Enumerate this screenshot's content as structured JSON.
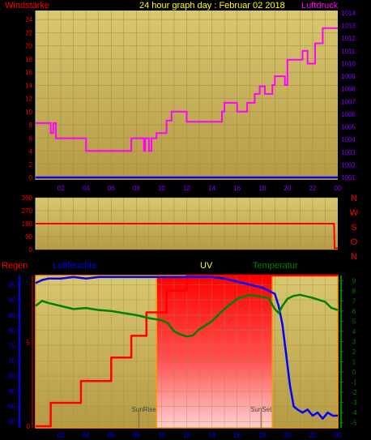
{
  "colors": {
    "background": "#000000",
    "panel": "#c9b25a",
    "panel_bottom": "#b8a049",
    "red": "#ff0000",
    "magenta": "#ff00ff",
    "blue": "#0000ff",
    "green": "#008000",
    "yellow": "#ffff00",
    "grid": "#8a7a3a",
    "axis_text_left": "#ff0000",
    "axis_text_right": "#8000ff"
  },
  "chart_data": [
    {
      "type": "line",
      "title": "24 hour graph day : Februar 02 2018",
      "left_label": "Windstärke",
      "right_label": "Luftdruck",
      "x_ticks": [
        "02",
        "04",
        "06",
        "08",
        "10",
        "12",
        "14",
        "16",
        "18",
        "20",
        "22",
        "00"
      ],
      "left_ticks": [
        "0",
        "2",
        "4",
        "6",
        "8",
        "10",
        "12",
        "14",
        "16",
        "18",
        "20",
        "22",
        "24"
      ],
      "right_ticks": [
        "1001",
        "1002",
        "1003",
        "1004",
        "1005",
        "1006",
        "1007",
        "1008",
        "1009",
        "1010",
        "1011",
        "1012",
        "1013",
        "1014"
      ],
      "ylim_left": [
        0,
        25
      ],
      "ylim_right": [
        1001,
        1014
      ],
      "xlim": [
        0,
        24
      ],
      "series": [
        {
          "name": "Luftdruck",
          "axis": "right",
          "color": "#ff00ff",
          "x": [
            0,
            1.2,
            1.2,
            1.4,
            1.4,
            1.6,
            1.6,
            4,
            4,
            7.6,
            7.6,
            8.6,
            8.6,
            8.7,
            8.7,
            9.0,
            9.0,
            9.2,
            9.2,
            9.6,
            9.6,
            10.4,
            10.4,
            10.8,
            10.8,
            12.0,
            12.0,
            14.8,
            14.8,
            15.0,
            15.0,
            16.0,
            16.0,
            16.8,
            16.8,
            17.4,
            17.4,
            17.8,
            17.8,
            18.2,
            18.2,
            18.8,
            18.8,
            19.0,
            19.0,
            19.8,
            19.8,
            20.0,
            20.0,
            21.2,
            21.2,
            21.6,
            21.6,
            22.2,
            22.2,
            22.8,
            22.8,
            24
          ],
          "values": [
            1005.3,
            1005.3,
            1004.5,
            1004.5,
            1005.3,
            1005.3,
            1004.1,
            1004.1,
            1003.1,
            1003.1,
            1004.1,
            1004.1,
            1003.1,
            1003.1,
            1004.1,
            1004.1,
            1003.1,
            1003.1,
            1004.1,
            1004.1,
            1004.5,
            1004.5,
            1005.5,
            1005.5,
            1006.2,
            1006.2,
            1005.4,
            1005.4,
            1006.2,
            1006.2,
            1006.9,
            1006.9,
            1006.2,
            1006.2,
            1006.9,
            1006.9,
            1007.6,
            1007.6,
            1008.2,
            1008.2,
            1007.6,
            1007.6,
            1008.3,
            1008.3,
            1009.0,
            1009.0,
            1008.3,
            1008.3,
            1010.3,
            1010.3,
            1011.0,
            1011.0,
            1010.0,
            1010.0,
            1011.6,
            1011.6,
            1012.8,
            1012.8
          ]
        },
        {
          "name": "Windstärke",
          "axis": "left",
          "color": "#0000ff",
          "x": [
            0,
            24
          ],
          "values": [
            0,
            0
          ]
        }
      ]
    },
    {
      "type": "line",
      "right_label": [
        "N",
        "W",
        "S",
        "O",
        "N"
      ],
      "left_ticks": [
        "0",
        "90",
        "180",
        "270",
        "360"
      ],
      "ylim": [
        0,
        360
      ],
      "xlim": [
        0,
        24
      ],
      "series": [
        {
          "name": "Windrichtung",
          "color": "#ff0000",
          "x": [
            0,
            23.7,
            23.75,
            24
          ],
          "values": [
            180,
            180,
            10,
            10
          ]
        }
      ]
    },
    {
      "type": "line",
      "labels": {
        "regen": "Regen",
        "luftfeuchte": "Luftfeuchte",
        "uv": "UV",
        "temperatur": "Temperatur",
        "sunrise": "SunRise",
        "sunset": "SunSet"
      },
      "x_ticks": [
        "02",
        "04",
        "06",
        "08",
        "10",
        "12",
        "14",
        "16",
        "18",
        "20",
        "22",
        "00"
      ],
      "left_ticks": [
        "50",
        "55",
        "60",
        "65",
        "70",
        "75",
        "80",
        "85",
        "90",
        "95"
      ],
      "rain_ticks": [
        "0",
        "5"
      ],
      "right_ticks": [
        "-5",
        "-4",
        "-3",
        "-2",
        "-1",
        "0",
        "1",
        "2",
        "3",
        "4",
        "5",
        "6",
        "7",
        "8",
        "9"
      ],
      "ylim_humidity": [
        48,
        98
      ],
      "ylim_temp": [
        -5.5,
        9.5
      ],
      "ylim_rain": [
        0,
        9
      ],
      "xlim": [
        0,
        24
      ],
      "sunrise": 9.6,
      "sunset": 18.8,
      "series": [
        {
          "name": "Regen",
          "color": "#ff0000",
          "x": [
            0,
            1.2,
            1.2,
            3.6,
            3.6,
            6.0,
            6.0,
            7.6,
            7.6,
            8.8,
            8.8,
            10.4,
            10.4,
            12.0,
            12.0,
            24
          ],
          "values": [
            0,
            0,
            1.4,
            1.4,
            2.7,
            2.7,
            4.1,
            4.1,
            5.4,
            5.4,
            6.8,
            6.8,
            8.1,
            8.1,
            9.0,
            9.0
          ]
        },
        {
          "name": "Luftfeuchte",
          "color": "#0000ff",
          "x": [
            0,
            0.5,
            1,
            2,
            3,
            4,
            5,
            6,
            7,
            8,
            9,
            10,
            11,
            12,
            13,
            14,
            15,
            15.5,
            16,
            16.5,
            17,
            17.5,
            18,
            18.5,
            19,
            19.3,
            19.6,
            19.9,
            20.2,
            20.5,
            20.8,
            21.2,
            21.6,
            22,
            22.4,
            22.8,
            23.2,
            23.6,
            24
          ],
          "values": [
            95.5,
            96.5,
            97,
            97,
            97.5,
            97,
            97.5,
            97.5,
            97.5,
            97.5,
            97.5,
            97.5,
            97.5,
            97.5,
            97.5,
            97.5,
            97,
            96.5,
            96,
            95.5,
            95,
            94.5,
            94,
            93,
            92,
            88,
            82,
            72,
            62,
            55,
            54,
            53,
            54,
            52,
            53,
            51,
            53,
            52,
            52
          ]
        },
        {
          "name": "Temperatur",
          "color": "#008000",
          "x": [
            0,
            0.5,
            1,
            2,
            3,
            4,
            5,
            6,
            7,
            8,
            9,
            10,
            10.5,
            11,
            11.5,
            12,
            12.5,
            13,
            14,
            15,
            16,
            17,
            17.5,
            18,
            18.5,
            19,
            19.3,
            19.6,
            20,
            20.5,
            21,
            22,
            23,
            23.5,
            24
          ],
          "values": [
            6.5,
            7.0,
            6.8,
            6.5,
            6.2,
            6.3,
            6.1,
            6.0,
            5.8,
            5.6,
            5.3,
            5.1,
            4.8,
            4.0,
            3.7,
            3.5,
            3.6,
            4.2,
            5.0,
            6.2,
            7.2,
            7.6,
            7.5,
            7.4,
            7.3,
            6.2,
            5.8,
            6.5,
            7.2,
            7.5,
            7.6,
            7.3,
            6.9,
            6.3,
            6.1
          ]
        }
      ]
    }
  ]
}
